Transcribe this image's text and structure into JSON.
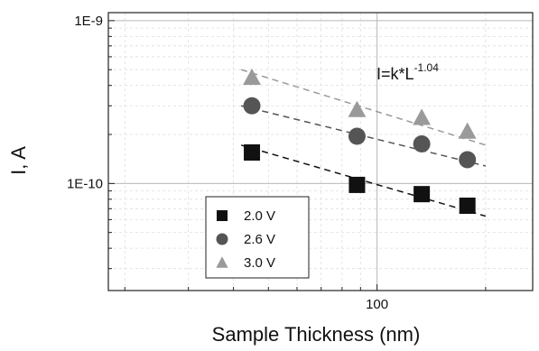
{
  "chart_data": {
    "type": "scatter",
    "title": "",
    "xlabel": "Sample Thickness (nm)",
    "ylabel": "I, A",
    "x_scale": "log",
    "y_scale": "log",
    "xlim": [
      18,
      270
    ],
    "ylim": [
      2.2e-11,
      1.12e-09
    ],
    "x_tick_labels": [
      {
        "value": 100,
        "label": "100"
      }
    ],
    "y_tick_labels": [
      {
        "value": 1e-09,
        "label": "1E-9"
      },
      {
        "value": 1e-10,
        "label": "1E-10"
      }
    ],
    "grid": true,
    "legend_position": "bottom-left",
    "annotation": {
      "base": "I=k*L",
      "exponent": "-1.04"
    },
    "series": [
      {
        "name": "2.0 V",
        "marker": "square",
        "color": "#111111",
        "x": [
          45,
          88,
          133,
          178
        ],
        "y": [
          1.55e-10,
          9.8e-11,
          8.6e-11,
          7.3e-11
        ],
        "fit": {
          "x": [
            42,
            200
          ],
          "y": [
            1.72e-10,
            6.3e-11
          ]
        }
      },
      {
        "name": "2.6 V",
        "marker": "circle",
        "color": "#555555",
        "x": [
          45,
          88,
          133,
          178
        ],
        "y": [
          3e-10,
          1.95e-10,
          1.75e-10,
          1.4e-10
        ],
        "fit": {
          "x": [
            42,
            200
          ],
          "y": [
            3e-10,
            1.28e-10
          ]
        }
      },
      {
        "name": "3.0 V",
        "marker": "triangle",
        "color": "#9a9a9a",
        "x": [
          45,
          88,
          133,
          178
        ],
        "y": [
          4.5e-10,
          2.85e-10,
          2.55e-10,
          2.1e-10
        ],
        "fit": {
          "x": [
            42,
            200
          ],
          "y": [
            5e-10,
            1.72e-10
          ]
        }
      }
    ]
  }
}
